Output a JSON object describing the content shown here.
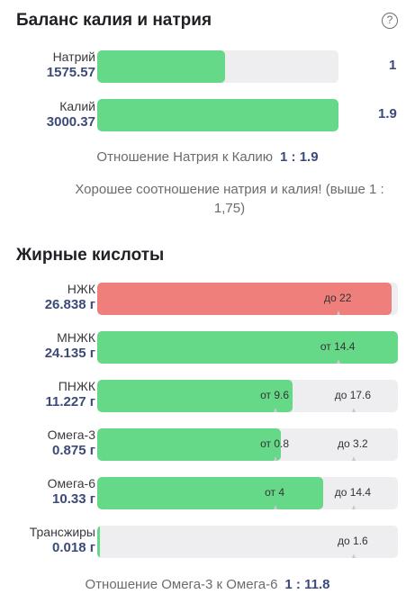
{
  "balance": {
    "title": "Баланс калия и натрия",
    "help_icon": "?",
    "rows": [
      {
        "name": "Натрий",
        "value": "1575.57",
        "ratio": "1",
        "fill": 0.53
      },
      {
        "name": "Калий",
        "value": "3000.37",
        "ratio": "1.9",
        "fill": 1.0
      }
    ],
    "ratio_label": "Отношение Натрия к Калию",
    "ratio_value": "1 : 1.9",
    "message": "Хорошее соотношение натрия и калия! (выше 1 : 1,75)"
  },
  "fats": {
    "title": "Жирные кислоты",
    "rows": [
      {
        "name": "НЖК",
        "value": "26.838 г",
        "fill": 0.98,
        "color": "#ee7f7a",
        "lo": "",
        "hi": "до 22",
        "lo_pos": null,
        "hi_pos": 0.8
      },
      {
        "name": "МНЖК",
        "value": "24.135 г",
        "fill": 1.0,
        "color": "#66d989",
        "lo": "от 14.4",
        "hi": "",
        "lo_pos": 0.8,
        "hi_pos": null
      },
      {
        "name": "ПНЖК",
        "value": "11.227 г",
        "fill": 0.65,
        "color": "#66d989",
        "lo": "от 9.6",
        "hi": "до 17.6",
        "lo_pos": 0.59,
        "hi_pos": 0.85
      },
      {
        "name": "Омега-3",
        "value": "0.875 г",
        "fill": 0.61,
        "color": "#66d989",
        "lo": "от 0.8",
        "hi": "до 3.2",
        "lo_pos": 0.59,
        "hi_pos": 0.85
      },
      {
        "name": "Омега-6",
        "value": "10.33 г",
        "fill": 0.75,
        "color": "#66d989",
        "lo": "от 4",
        "hi": "до 14.4",
        "lo_pos": 0.59,
        "hi_pos": 0.85
      },
      {
        "name": "Трансжиры",
        "value": "0.018 г",
        "fill": 0.01,
        "color": "#66d989",
        "lo": "",
        "hi": "до 1.6",
        "lo_pos": null,
        "hi_pos": 0.85
      }
    ],
    "ratio_label": "Отношение Омега-3 к Омега-6",
    "ratio_value": "1 : 11.8"
  }
}
